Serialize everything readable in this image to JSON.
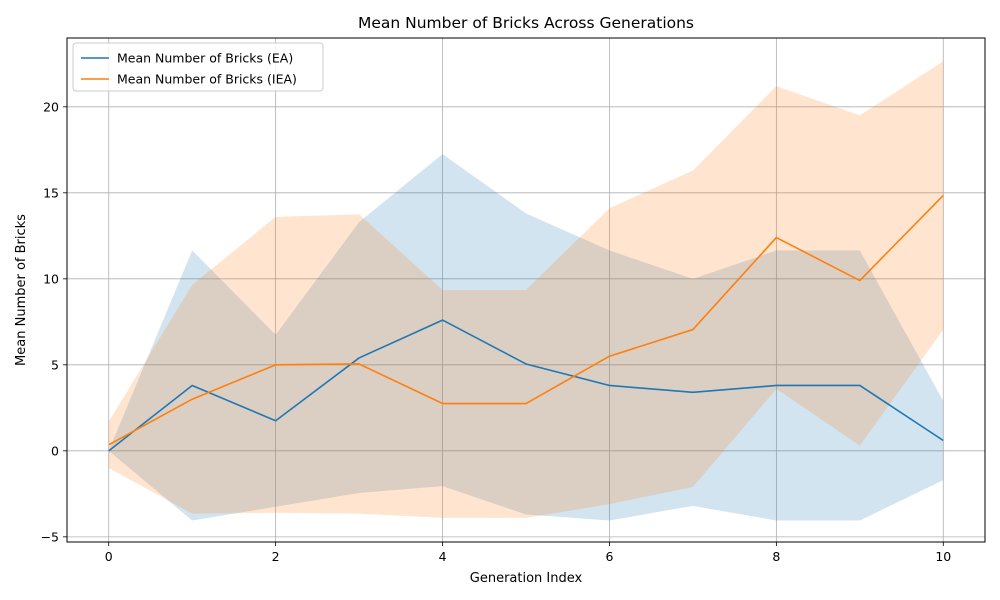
{
  "chart_data": {
    "type": "line",
    "title": "Mean Number of Bricks Across Generations",
    "xlabel": "Generation Index",
    "ylabel": "Mean Number of Bricks",
    "xlim": [
      -0.5,
      10.5
    ],
    "ylim": [
      -5.3,
      24
    ],
    "xticks": [
      0,
      2,
      4,
      6,
      8,
      10
    ],
    "yticks": [
      -5,
      0,
      5,
      10,
      15,
      20
    ],
    "grid": true,
    "legend_position": "top-left",
    "x": [
      0,
      1,
      2,
      3,
      4,
      5,
      6,
      7,
      8,
      9,
      10
    ],
    "series": [
      {
        "name": "Mean Number of Bricks (EA)",
        "color": "#1f77b4",
        "band_color": "#1f77b4",
        "values": [
          0.0,
          3.8,
          1.75,
          5.4,
          7.6,
          5.05,
          3.8,
          3.4,
          3.8,
          3.8,
          0.6
        ],
        "upper": [
          0.0,
          11.65,
          6.75,
          13.3,
          17.25,
          13.8,
          11.65,
          10.0,
          11.65,
          11.65,
          2.9
        ],
        "lower": [
          0.0,
          -4.05,
          -3.25,
          -2.45,
          -2.05,
          -3.7,
          -4.05,
          -3.2,
          -4.05,
          -4.05,
          -1.7
        ]
      },
      {
        "name": "Mean Number of Bricks (IEA)",
        "color": "#ff7f0e",
        "band_color": "#ff7f0e",
        "values": [
          0.35,
          3.0,
          5.0,
          5.05,
          2.75,
          2.75,
          5.5,
          7.05,
          12.4,
          9.9,
          14.85
        ],
        "upper": [
          1.7,
          9.65,
          13.6,
          13.75,
          9.35,
          9.35,
          14.1,
          16.3,
          21.2,
          19.5,
          22.65
        ],
        "lower": [
          -1.0,
          -3.65,
          -3.6,
          -3.65,
          -3.9,
          -3.9,
          -3.1,
          -2.1,
          3.6,
          0.3,
          7.05
        ]
      }
    ]
  }
}
